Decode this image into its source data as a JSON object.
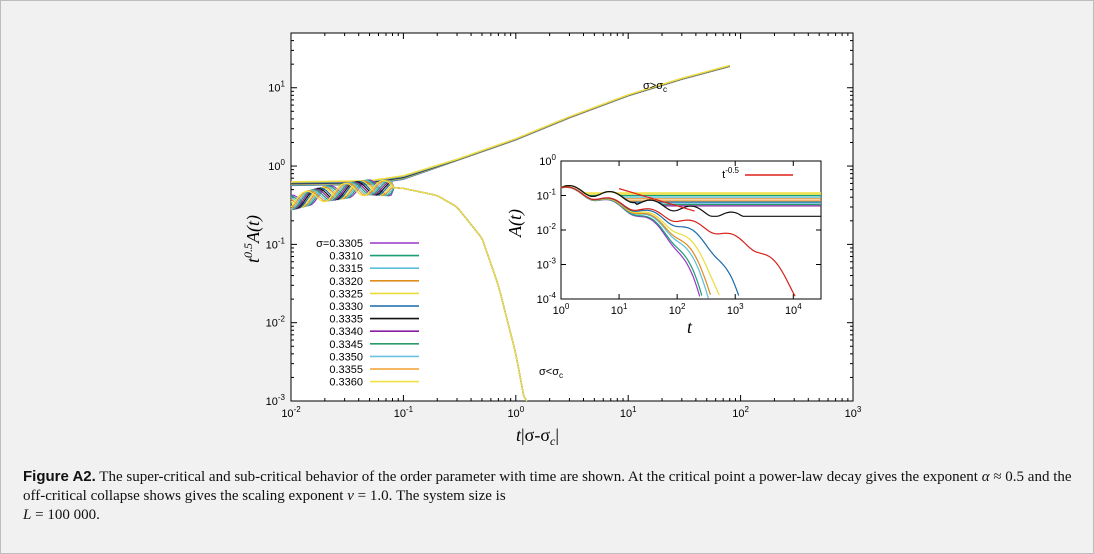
{
  "caption": {
    "label": "Figure A2.",
    "text_1": "The super-critical and sub-critical behavior of the order parameter with time are shown. At the critical point a power-law decay gives the exponent",
    "alpha_symbol": "α",
    "approx_symbol": "≈",
    "alpha_value": "0.5",
    "text_2": "and the off-critical collapse shows gives the scaling exponent",
    "nu_symbol": "ν",
    "equals_symbol": "=",
    "nu_value": "1.0",
    "text_3": ". The system size is",
    "L_symbol": "L",
    "L_value": "100 000",
    "text_4": "."
  },
  "colors": {
    "panel_bg": "#f1f1f2",
    "axis": "#000000",
    "reference_line": "#e0201a"
  },
  "chart_data": [
    {
      "type": "line",
      "scale": "log-log",
      "xlabel": "t|σ-σ_c|",
      "ylabel": "t^0.5 A(t)",
      "xlim": [
        0.01,
        1000
      ],
      "ylim": [
        0.001,
        50
      ],
      "x_ticks": [
        "10^-2",
        "10^-1",
        "10^0",
        "10^1",
        "10^2",
        "10^3"
      ],
      "y_ticks": [
        "10^-3",
        "10^-2",
        "10^-1",
        "10^0",
        "10^1"
      ],
      "annotations": [
        {
          "text": "σ>σ_c",
          "x": 10,
          "y": 18
        },
        {
          "text": "σ<σ_c",
          "x": 1.3,
          "y": 0.0018
        }
      ],
      "legend": {
        "placement": "bottom-left",
        "prefix": "σ=",
        "entries": [
          "0.3305",
          "0.3310",
          "0.3315",
          "0.3320",
          "0.3325",
          "0.3330",
          "0.3335",
          "0.3340",
          "0.3345",
          "0.3350",
          "0.3355",
          "0.3360"
        ],
        "colors": [
          "#9a36c8",
          "#1a9e77",
          "#5abfd9",
          "#e08c1c",
          "#e8dd3a",
          "#1a6aa8",
          "#111111",
          "#8a1ea0",
          "#2a9a6a",
          "#6ac2e0",
          "#f0a030",
          "#f0e040"
        ]
      },
      "subcritical_curve": {
        "x": [
          0.01,
          0.02,
          0.05,
          0.1,
          0.2,
          0.3,
          0.5,
          0.7,
          1.0,
          1.2
        ],
        "y": [
          0.35,
          0.45,
          0.55,
          0.52,
          0.42,
          0.3,
          0.12,
          0.03,
          0.004,
          0.001
        ]
      },
      "supercritical_curve": {
        "x": [
          0.01,
          0.05,
          0.1,
          0.3,
          1,
          3,
          10,
          30,
          80
        ],
        "y": [
          0.6,
          0.62,
          0.72,
          1.2,
          2.2,
          4.2,
          8,
          13,
          19
        ]
      }
    },
    {
      "type": "line",
      "scale": "log-log",
      "xlabel": "t",
      "ylabel": "A(t)",
      "xlim": [
        1,
        30000
      ],
      "ylim": [
        0.0001,
        1
      ],
      "x_ticks": [
        "10^0",
        "10^1",
        "10^2",
        "10^3",
        "10^4"
      ],
      "y_ticks": [
        "10^-4",
        "10^-3",
        "10^-2",
        "10^-1",
        "10^0"
      ],
      "reference_line": {
        "label": "t^-0.5",
        "exponent": -0.5
      },
      "series_plateaus": [
        0.05,
        0.055,
        0.06,
        0.065,
        0.07,
        0.08,
        0.09,
        0.1,
        0.11,
        0.12
      ],
      "critical_plateau": 0.025,
      "decay_ends_t": [
        400,
        450,
        600,
        700,
        1000,
        2200,
        30000
      ]
    }
  ]
}
